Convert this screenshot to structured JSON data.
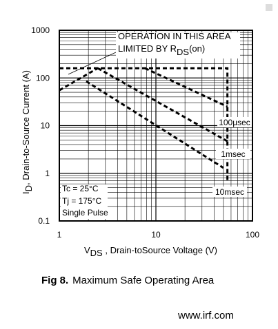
{
  "chart_data": {
    "type": "line",
    "annotation": {
      "line1": "OPERATION IN THIS AREA",
      "line2": "LIMITED BY R",
      "line2_sub": "DS",
      "line2_end": "(on)"
    },
    "conditions": [
      "Tc = 25°C",
      "Tj = 175°C",
      "Single Pulse"
    ],
    "xlabel": {
      "main": "V",
      "sub": "DS",
      "rest": " , Drain-toSource Voltage (V)"
    },
    "ylabel": {
      "main": "I",
      "sub": "D",
      "rest": ", Drain-to-Source Current (A)"
    },
    "caption": {
      "label": "Fig 8.",
      "text": "Maximum Safe Operating Area"
    },
    "footer": "www.irf.com",
    "xscale": "log",
    "yscale": "log",
    "grid": true,
    "minor_grid": true,
    "xlim": [
      1,
      100
    ],
    "ylim": [
      0.1,
      1000
    ],
    "xticks": [
      1,
      10,
      100
    ],
    "yticks": [
      0.1,
      1,
      10,
      100,
      1000
    ],
    "series": [
      {
        "color": "#000000",
        "x": [
          1,
          55,
          55
        ],
        "values": [
          160,
          160,
          0.65
        ]
      },
      {
        "color": "#000000",
        "x": [
          1,
          2.5
        ],
        "values": [
          55,
          160
        ]
      },
      {
        "name": "100µsec",
        "color": "#000000",
        "x": [
          7.7,
          55
        ],
        "values": [
          160,
          25
        ]
      },
      {
        "name": "1msec",
        "color": "#000000",
        "x": [
          2.5,
          55
        ],
        "values": [
          160,
          4.7
        ]
      },
      {
        "name": "10msec",
        "color": "#000000",
        "x": [
          1.9,
          50
        ],
        "values": [
          85,
          1.3
        ]
      }
    ]
  }
}
